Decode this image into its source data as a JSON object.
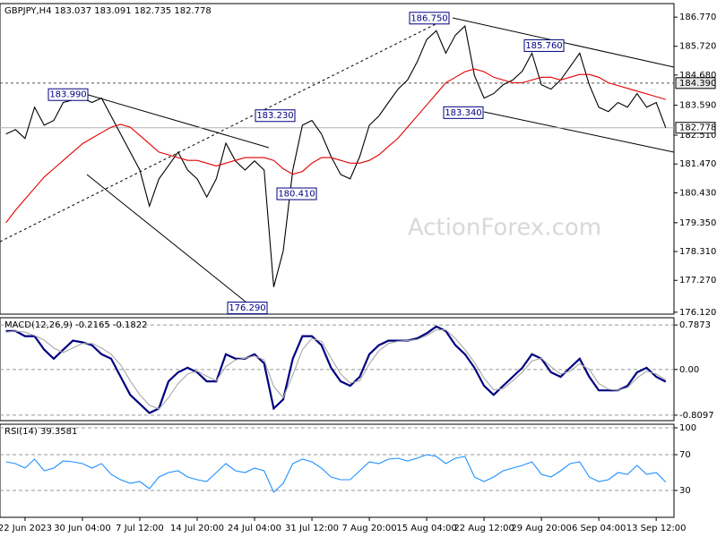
{
  "chart_data": [
    {
      "type": "line",
      "title": "GBPJPY,H4 183.037 183.091 182.735 182.778",
      "watermark": "ActionForex.com",
      "categories": [
        null,
        null,
        "22 Jun 2023",
        null,
        null,
        null,
        null,
        null,
        "30 Jun 04:00",
        null,
        null,
        null,
        null,
        null,
        "7 Jul 12:00",
        null,
        null,
        null,
        null,
        null,
        "14 Jul 20:00",
        null,
        null,
        null,
        null,
        null,
        "24 Jul 04:00",
        null,
        null,
        null,
        null,
        null,
        "31 Jul 12:00",
        null,
        null,
        null,
        null,
        null,
        "7 Aug 20:00",
        null,
        null,
        null,
        null,
        null,
        "15 Aug 04:00",
        null,
        null,
        null,
        null,
        null,
        "22 Aug 12:00",
        null,
        null,
        null,
        null,
        null,
        "29 Aug 20:00",
        null,
        null,
        null,
        null,
        null,
        "6 Sep 04:00",
        null,
        null,
        null,
        null,
        null,
        "13 Sep 12:00",
        null
      ],
      "series": [
        {
          "color": "#000000",
          "values": [
            182.55,
            182.71,
            182.39,
            183.52,
            182.87,
            183.04,
            183.69,
            183.78,
            183.85,
            183.69,
            183.85,
            183.2,
            182.55,
            181.9,
            181.25,
            179.95,
            180.93,
            181.41,
            181.9,
            181.25,
            180.93,
            180.28,
            180.93,
            182.22,
            181.58,
            181.25,
            181.58,
            181.25,
            177.03,
            178.33,
            181.25,
            182.87,
            183.04,
            182.55,
            181.74,
            181.09,
            180.93,
            181.74,
            182.87,
            183.2,
            183.69,
            184.17,
            184.5,
            185.15,
            185.96,
            186.28,
            185.47,
            186.12,
            186.45,
            184.66,
            183.85,
            184.01,
            184.33,
            184.5,
            184.82,
            185.47,
            184.33,
            184.17,
            184.5,
            184.98,
            185.47,
            184.33,
            183.52,
            183.36,
            183.69,
            183.52,
            184.01,
            183.52,
            183.69,
            182.778
          ]
        },
        {
          "color": "#e00000",
          "values": [
            179.35,
            179.8,
            180.2,
            180.6,
            181,
            181.3,
            181.6,
            181.9,
            182.2,
            182.4,
            182.6,
            182.8,
            182.9,
            182.8,
            182.5,
            182.2,
            181.9,
            181.8,
            181.7,
            181.6,
            181.6,
            181.5,
            181.4,
            181.5,
            181.6,
            181.7,
            181.7,
            181.7,
            181.6,
            181.3,
            181.1,
            181.2,
            181.5,
            181.7,
            181.7,
            181.6,
            181.5,
            181.5,
            181.6,
            181.8,
            182.1,
            182.4,
            182.8,
            183.2,
            183.6,
            184,
            184.4,
            184.6,
            184.8,
            184.9,
            184.8,
            184.6,
            184.5,
            184.4,
            184.4,
            184.5,
            184.6,
            184.6,
            184.5,
            184.6,
            184.7,
            184.7,
            184.6,
            184.4,
            184.3,
            184.2,
            184.1,
            184,
            183.9,
            183.8
          ]
        }
      ],
      "ylim": [
        176.05,
        187.26
      ],
      "yticks": [
        {
          "value": 186.77,
          "label": "186.770"
        },
        {
          "value": 185.72,
          "label": "185.720"
        },
        {
          "value": 184.68,
          "label": "184.680"
        },
        {
          "value": 183.59,
          "label": "183.590"
        },
        {
          "value": 182.51,
          "label": "182.510"
        },
        {
          "value": 181.47,
          "label": "181.470"
        },
        {
          "value": 180.43,
          "label": "180.430"
        },
        {
          "value": 179.35,
          "label": "179.350"
        },
        {
          "value": 178.31,
          "label": "178.310"
        },
        {
          "value": 177.27,
          "label": "177.270"
        },
        {
          "value": 176.12,
          "label": "176.120"
        }
      ],
      "grid": false,
      "annotations": [
        {
          "value": 183.99,
          "label": "183.990"
        },
        {
          "value": 183.23,
          "label": "183.230"
        },
        {
          "value": 180.41,
          "label": "180.410"
        },
        {
          "value": 176.29,
          "label": "176.290"
        },
        {
          "value": 186.75,
          "label": "186.750"
        },
        {
          "value": 185.76,
          "label": "185.760"
        },
        {
          "value": 183.34,
          "label": "183.340"
        }
      ],
      "price_lines": [
        {
          "value": 184.39,
          "label": "184.390",
          "color": "#555555",
          "dashed": true
        },
        {
          "value": 182.778,
          "label": "182.778",
          "color": "#b0b0b0",
          "dashed": false
        }
      ]
    },
    {
      "type": "line",
      "title": "MACD(12,26,9) -0.2165 -0.1822",
      "series": [
        {
          "color": "#000080",
          "values": [
            0.68,
            0.68,
            0.59,
            0.59,
            0.35,
            0.19,
            0.35,
            0.51,
            0.48,
            0.43,
            0.27,
            0.19,
            -0.13,
            -0.45,
            -0.61,
            -0.77,
            -0.69,
            -0.21,
            -0.05,
            0.03,
            -0.05,
            -0.21,
            -0.21,
            0.27,
            0.19,
            0.19,
            0.27,
            0.11,
            -0.69,
            -0.53,
            0.19,
            0.59,
            0.59,
            0.43,
            0.03,
            -0.21,
            -0.29,
            -0.13,
            0.27,
            0.43,
            0.51,
            0.51,
            0.51,
            0.55,
            0.64,
            0.76,
            0.68,
            0.43,
            0.27,
            0.03,
            -0.29,
            -0.45,
            -0.29,
            -0.13,
            0.03,
            0.27,
            0.19,
            -0.05,
            -0.13,
            0.03,
            0.19,
            -0.13,
            -0.37,
            -0.37,
            -0.37,
            -0.29,
            -0.05,
            0.03,
            -0.13,
            -0.2165
          ]
        },
        {
          "color": "#a8a8a8",
          "values": [
            0.66,
            0.68,
            0.66,
            0.6,
            0.52,
            0.38,
            0.3,
            0.38,
            0.46,
            0.46,
            0.38,
            0.27,
            0.08,
            -0.2,
            -0.45,
            -0.63,
            -0.7,
            -0.5,
            -0.25,
            -0.08,
            -0.03,
            -0.12,
            -0.2,
            0.05,
            0.17,
            0.2,
            0.24,
            0.17,
            -0.3,
            -0.5,
            -0.1,
            0.35,
            0.55,
            0.5,
            0.2,
            -0.08,
            -0.24,
            -0.2,
            0.1,
            0.33,
            0.46,
            0.5,
            0.51,
            0.53,
            0.6,
            0.7,
            0.7,
            0.55,
            0.35,
            0.12,
            -0.15,
            -0.36,
            -0.34,
            -0.2,
            -0.05,
            0.15,
            0.2,
            0.05,
            -0.08,
            -0.03,
            0.1,
            0.0,
            -0.25,
            -0.35,
            -0.37,
            -0.32,
            -0.15,
            -0.03,
            -0.08,
            -0.1822
          ]
        }
      ],
      "ylim": [
        -0.906,
        0.916
      ],
      "yticks": [
        0.7873,
        {
          "value": 0,
          "label": "0.00"
        },
        -0.8097
      ],
      "grid": true
    },
    {
      "type": "line",
      "title": "RSI(14) 39.3581",
      "series": [
        {
          "color": "#1e90ff",
          "values": [
            62,
            60,
            55,
            65,
            52,
            55,
            63,
            62,
            60,
            55,
            60,
            48,
            42,
            38,
            40,
            32,
            45,
            50,
            52,
            45,
            42,
            40,
            50,
            60,
            52,
            50,
            55,
            52,
            28,
            38,
            60,
            65,
            62,
            55,
            45,
            42,
            42,
            52,
            62,
            60,
            65,
            66,
            63,
            66,
            70,
            68,
            60,
            66,
            68,
            45,
            40,
            45,
            52,
            55,
            58,
            62,
            48,
            45,
            52,
            60,
            62,
            45,
            40,
            42,
            50,
            48,
            58,
            48,
            50,
            39.3581
          ]
        }
      ],
      "ylim": [
        0,
        104
      ],
      "yticks": [
        100,
        70,
        30
      ],
      "grid": true
    }
  ]
}
